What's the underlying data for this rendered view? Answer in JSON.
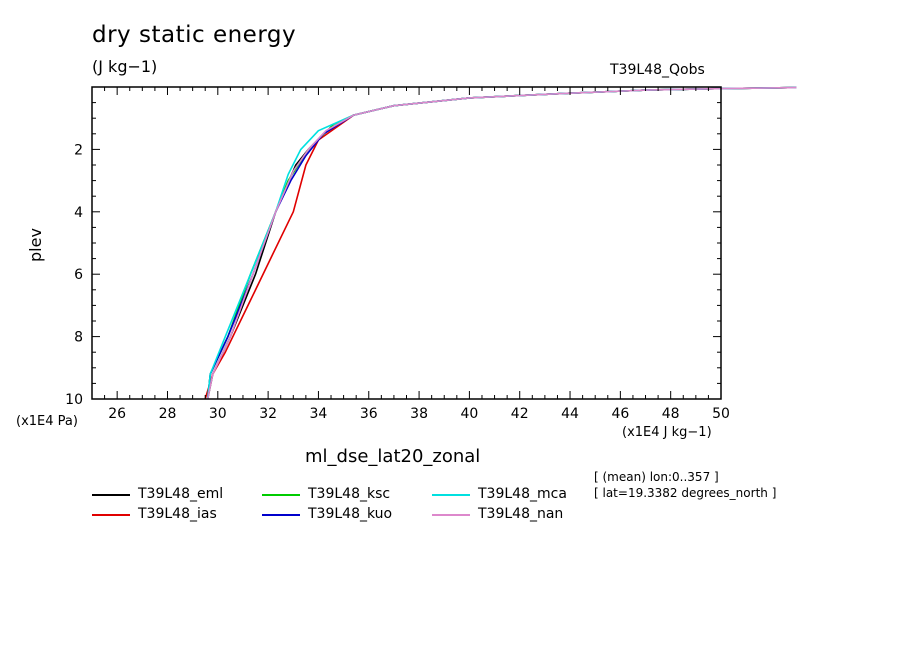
{
  "header": {
    "title": "dry static energy",
    "units": "(J kg−1)",
    "experiment_tag": "T39L48_Qobs"
  },
  "axis": {
    "ylabel": "plev",
    "yunit": "(x1E4 Pa)",
    "xunit": "(x1E4 J kg−1)",
    "xlabel": "ml_dse_lat20_zonal"
  },
  "info": {
    "line1": "[ (mean) lon:0..357 ]",
    "line2": "[ lat=19.3382 degrees_north ]"
  },
  "chart_data": {
    "type": "line",
    "title": "dry static energy",
    "subtitle": "(J kg−1)",
    "xlabel": "ml_dse_lat20_zonal",
    "ylabel": "plev",
    "xlim": [
      25,
      50
    ],
    "ylim": [
      10,
      0
    ],
    "x_ticks": [
      26,
      28,
      30,
      32,
      34,
      36,
      38,
      40,
      42,
      44,
      46,
      48,
      50
    ],
    "y_ticks": [
      2,
      4,
      6,
      8,
      10
    ],
    "grid": false,
    "legend_position": "bottom",
    "series": [
      {
        "name": "T39L48_eml",
        "color": "#000000",
        "x": [
          29.6,
          29.8,
          30.5,
          31.5,
          32.3,
          33.1,
          33.6,
          34.2,
          35.4,
          37.0,
          40.0,
          44.0,
          47.0,
          50.0,
          53.0
        ],
        "p": [
          10,
          9.2,
          8.0,
          6.0,
          4.0,
          2.5,
          2.0,
          1.5,
          0.9,
          0.6,
          0.35,
          0.2,
          0.1,
          0.05,
          0.02
        ]
      },
      {
        "name": "T39L48_ias",
        "color": "#e00000",
        "x": [
          29.5,
          29.8,
          30.3,
          31.2,
          32.1,
          33.0,
          33.5,
          34.0,
          35.4,
          37.0,
          40.0,
          44.0,
          47.0,
          50.0,
          53.0
        ],
        "p": [
          10,
          9.2,
          8.5,
          7.0,
          5.5,
          4.0,
          2.5,
          1.7,
          0.9,
          0.6,
          0.35,
          0.2,
          0.1,
          0.05,
          0.02
        ]
      },
      {
        "name": "T39L48_ksc",
        "color": "#00cc00",
        "x": [
          29.6,
          29.7,
          30.4,
          31.3,
          32.3,
          32.8,
          33.6,
          34.6,
          35.4,
          37.0,
          40.0,
          44.0,
          47.0,
          50.0,
          53.0
        ],
        "p": [
          10,
          9.2,
          8.0,
          6.0,
          4.0,
          3.0,
          2.0,
          1.2,
          0.9,
          0.6,
          0.35,
          0.2,
          0.1,
          0.05,
          0.02
        ]
      },
      {
        "name": "T39L48_kuo",
        "color": "#0000cc",
        "x": [
          29.6,
          29.7,
          30.4,
          31.4,
          32.3,
          32.9,
          33.5,
          34.2,
          35.4,
          37.0,
          40.0,
          44.0,
          47.0,
          50.0,
          53.0
        ],
        "p": [
          10,
          9.2,
          8.0,
          6.0,
          4.0,
          3.0,
          2.2,
          1.5,
          0.9,
          0.6,
          0.35,
          0.2,
          0.1,
          0.05,
          0.02
        ]
      },
      {
        "name": "T39L48_mca",
        "color": "#00e0e0",
        "x": [
          29.6,
          29.7,
          30.3,
          31.3,
          32.3,
          32.8,
          33.3,
          34.0,
          35.4,
          37.0,
          40.0,
          44.0,
          47.0,
          50.0,
          53.0
        ],
        "p": [
          10,
          9.2,
          8.0,
          6.0,
          4.0,
          2.8,
          2.0,
          1.4,
          0.9,
          0.6,
          0.35,
          0.2,
          0.1,
          0.05,
          0.02
        ]
      },
      {
        "name": "T39L48_nan",
        "color": "#dd88cc",
        "x": [
          29.6,
          29.8,
          30.5,
          31.4,
          32.3,
          33.0,
          33.6,
          34.3,
          35.4,
          37.0,
          40.0,
          44.0,
          47.0,
          50.0,
          53.0
        ],
        "p": [
          10,
          9.2,
          8.0,
          6.0,
          4.0,
          2.7,
          2.0,
          1.4,
          0.9,
          0.6,
          0.35,
          0.2,
          0.1,
          0.05,
          0.02
        ]
      }
    ]
  }
}
